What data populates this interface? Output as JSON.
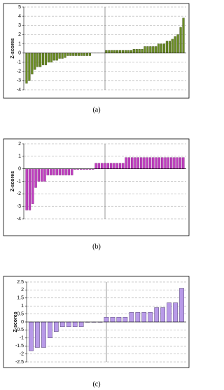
{
  "chart_data": [
    {
      "type": "bar",
      "ylabel": "Z-scores",
      "caption": "(a)",
      "color": "#6b8e23",
      "edge": "#2f3f0a",
      "ylim": [
        -4,
        5
      ],
      "yticks": [
        -4,
        -3,
        -2,
        -1,
        0,
        1,
        2,
        3,
        4,
        5
      ],
      "grid": true,
      "values": [
        -3.3,
        -3.0,
        -2.3,
        -1.8,
        -1.5,
        -1.5,
        -1.3,
        -1.3,
        -1.0,
        -1.0,
        -0.8,
        -0.8,
        -0.6,
        -0.6,
        -0.5,
        -0.3,
        -0.3,
        -0.3,
        -0.3,
        -0.3,
        -0.3,
        -0.3,
        -0.3,
        -0.3,
        0,
        0,
        0,
        0,
        0,
        0.3,
        0.3,
        0.3,
        0.3,
        0.3,
        0.3,
        0.3,
        0.3,
        0.3,
        0.3,
        0.4,
        0.4,
        0.4,
        0.4,
        0.7,
        0.7,
        0.7,
        0.7,
        0.7,
        1.0,
        1.0,
        1.0,
        1.3,
        1.3,
        1.5,
        1.8,
        2.0,
        2.8,
        3.8
      ]
    },
    {
      "type": "bar",
      "ylabel": "Z-scores",
      "caption": "(b)",
      "color": "#c040c0",
      "edge": "#7a1a7a",
      "ylim": [
        -4,
        2
      ],
      "yticks": [
        -4,
        -3,
        -2,
        -1,
        0,
        1,
        2
      ],
      "grid": true,
      "values": [
        -3.3,
        -3.3,
        -2.8,
        -1.5,
        -1.0,
        -1.0,
        -1.0,
        -0.5,
        -0.5,
        -0.5,
        -0.5,
        -0.5,
        -0.5,
        -0.5,
        -0.5,
        -0.5,
        -0.05,
        -0.05,
        -0.05,
        -0.05,
        -0.05,
        -0.05,
        -0.05,
        0.45,
        0.45,
        0.45,
        0.45,
        0.45,
        0.45,
        0.45,
        0.45,
        0.45,
        0.45,
        0.9,
        0.9,
        0.9,
        0.9,
        0.9,
        0.9,
        0.9,
        0.9,
        0.9,
        0.9,
        0.9,
        0.9,
        0.9,
        0.9,
        0.9,
        0.9,
        0.9,
        0.9,
        0.9,
        0.9
      ]
    },
    {
      "type": "bar",
      "ylabel": "Z-scores",
      "caption": "(c)",
      "color": "#b89ae8",
      "edge": "#3a2a5a",
      "ylim": [
        -2.5,
        2.5
      ],
      "yticks": [
        -2.5,
        -2,
        -1.5,
        -1,
        -0.5,
        0,
        0.5,
        1,
        1.5,
        2,
        2.5
      ],
      "grid": true,
      "values": [
        -1.8,
        -1.6,
        -1.6,
        -1.0,
        -0.6,
        -0.3,
        -0.3,
        -0.3,
        -0.3,
        -0.02,
        -0.02,
        -0.02,
        0.3,
        0.3,
        0.3,
        0.3,
        0.6,
        0.6,
        0.6,
        0.6,
        0.9,
        0.9,
        1.2,
        1.2,
        2.1
      ]
    }
  ]
}
